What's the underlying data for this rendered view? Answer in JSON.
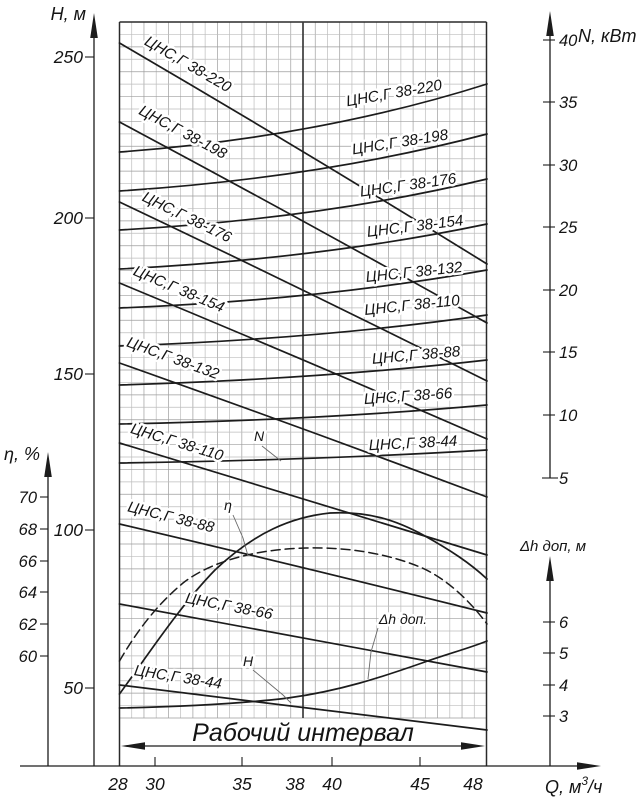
{
  "labels": {
    "axes": {
      "h": {
        "title": "H, м",
        "ticks": [
          "250",
          "200",
          "150",
          "100",
          "50"
        ]
      },
      "eta": {
        "title": "η, %",
        "ticks": [
          "70",
          "68",
          "66",
          "64",
          "62",
          "60"
        ]
      },
      "n": {
        "title": "N, кВт",
        "ticks": [
          "40",
          "35",
          "30",
          "25",
          "20",
          "15",
          "10",
          "5"
        ]
      },
      "dh": {
        "title": "Δh доп, м",
        "ticks": [
          "6",
          "5",
          "4",
          "3"
        ]
      },
      "q": {
        "title_main": "Q, м",
        "title_sup": "3",
        "title_tail": "/ч",
        "ticks": [
          "28",
          "30",
          "35",
          "38",
          "40",
          "45",
          "48"
        ]
      }
    },
    "pumps": [
      "ЦНС,Г 38-220",
      "ЦНС,Г 38-198",
      "ЦНС,Г 38-176",
      "ЦНС,Г 38-154",
      "ЦНС,Г 38-132",
      "ЦНС,Г 38-110",
      "ЦНС,Г 38-88",
      "ЦНС,Г 38-66",
      "ЦНС,Г 38-44"
    ],
    "markers": {
      "n": "N",
      "eta": "η",
      "h": "H",
      "dh": "Δh доп."
    },
    "working_interval": "Рабочий интервал"
  },
  "chart_data": {
    "type": "line",
    "title": "",
    "xlabel": "Q, м³/ч",
    "x_range": [
      28,
      48
    ],
    "working_interval_q": [
      28,
      48
    ],
    "axes": {
      "head": {
        "label": "H, м",
        "ticks": [
          50,
          100,
          150,
          200,
          250
        ]
      },
      "power": {
        "label": "N, кВт",
        "ticks": [
          5,
          10,
          15,
          20,
          25,
          30,
          35,
          40
        ]
      },
      "efficiency": {
        "label": "η, %",
        "ticks": [
          60,
          62,
          64,
          66,
          68,
          70
        ]
      },
      "suction": {
        "label": "Δh доп, м",
        "ticks": [
          3,
          4,
          5,
          6
        ]
      }
    },
    "grid": "on",
    "series": [
      {
        "name": "ЦНС,Г 38-220",
        "quantity": "H",
        "unit": "м",
        "x": [
          28,
          38,
          48
        ],
        "values": [
          255,
          220,
          184
        ]
      },
      {
        "name": "ЦНС,Г 38-198",
        "quantity": "H",
        "unit": "м",
        "x": [
          28,
          38,
          48
        ],
        "values": [
          229,
          198,
          166
        ]
      },
      {
        "name": "ЦНС,Г 38-176",
        "quantity": "H",
        "unit": "м",
        "x": [
          28,
          38,
          48
        ],
        "values": [
          204,
          176,
          147
        ]
      },
      {
        "name": "ЦНС,Г 38-154",
        "quantity": "H",
        "unit": "м",
        "x": [
          28,
          38,
          48
        ],
        "values": [
          178,
          154,
          129
        ]
      },
      {
        "name": "ЦНС,Г 38-132",
        "quantity": "H",
        "unit": "м",
        "x": [
          28,
          38,
          48
        ],
        "values": [
          153,
          132,
          110
        ]
      },
      {
        "name": "ЦНС,Г 38-110",
        "quantity": "H",
        "unit": "м",
        "x": [
          28,
          38,
          48
        ],
        "values": [
          127,
          110,
          92
        ]
      },
      {
        "name": "ЦНС,Г 38-88",
        "quantity": "H",
        "unit": "м",
        "x": [
          28,
          38,
          48
        ],
        "values": [
          102,
          88,
          74
        ]
      },
      {
        "name": "ЦНС,Г 38-66",
        "quantity": "H",
        "unit": "м",
        "x": [
          28,
          38,
          48
        ],
        "values": [
          76,
          66,
          55
        ]
      },
      {
        "name": "ЦНС,Г 38-44",
        "quantity": "H",
        "unit": "м",
        "x": [
          28,
          38,
          48
        ],
        "values": [
          51,
          44,
          37
        ]
      },
      {
        "name": "ЦНС,Г 38-220",
        "quantity": "N",
        "unit": "кВт",
        "x": [
          28,
          48
        ],
        "values": [
          31.0,
          36.5
        ]
      },
      {
        "name": "ЦНС,Г 38-198",
        "quantity": "N",
        "unit": "кВт",
        "x": [
          28,
          48
        ],
        "values": [
          27.9,
          32.5
        ]
      },
      {
        "name": "ЦНС,Г 38-176",
        "quantity": "N",
        "unit": "кВт",
        "x": [
          28,
          48
        ],
        "values": [
          24.8,
          28.9
        ]
      },
      {
        "name": "ЦНС,Г 38-154",
        "quantity": "N",
        "unit": "кВт",
        "x": [
          28,
          48
        ],
        "values": [
          21.7,
          25.3
        ]
      },
      {
        "name": "ЦНС,Г 38-132",
        "quantity": "N",
        "unit": "кВт",
        "x": [
          28,
          48
        ],
        "values": [
          18.6,
          21.6
        ]
      },
      {
        "name": "ЦНС,Г 38-110",
        "quantity": "N",
        "unit": "кВт",
        "x": [
          28,
          48
        ],
        "values": [
          15.5,
          18.0
        ]
      },
      {
        "name": "ЦНС,Г 38-88",
        "quantity": "N",
        "unit": "кВт",
        "x": [
          28,
          48
        ],
        "values": [
          12.4,
          14.4
        ]
      },
      {
        "name": "ЦНС,Г 38-66",
        "quantity": "N",
        "unit": "кВт",
        "x": [
          28,
          48
        ],
        "values": [
          9.3,
          10.8
        ]
      },
      {
        "name": "ЦНС,Г 38-44",
        "quantity": "N",
        "unit": "кВт",
        "x": [
          28,
          48
        ],
        "values": [
          6.2,
          7.2
        ]
      },
      {
        "name": "η",
        "quantity": "eta",
        "unit": "%",
        "style": "solid",
        "x": [
          28,
          32,
          36,
          40,
          44,
          48
        ],
        "values": [
          57.5,
          62.5,
          68.0,
          69.0,
          68.0,
          65.0
        ]
      },
      {
        "name": "η",
        "quantity": "eta",
        "unit": "%",
        "style": "dashed",
        "x": [
          28,
          32,
          36,
          40,
          44,
          48
        ],
        "values": [
          60.0,
          65.0,
          66.5,
          66.8,
          65.5,
          62.0
        ]
      },
      {
        "name": "Δh доп",
        "quantity": "dh",
        "unit": "м",
        "x": [
          28,
          33,
          38,
          43,
          48
        ],
        "values": [
          3.2,
          3.3,
          3.6,
          4.5,
          5.4
        ]
      }
    ],
    "annotations": [
      "N",
      "η",
      "H",
      "Δh доп.",
      "Рабочий интервал"
    ]
  }
}
